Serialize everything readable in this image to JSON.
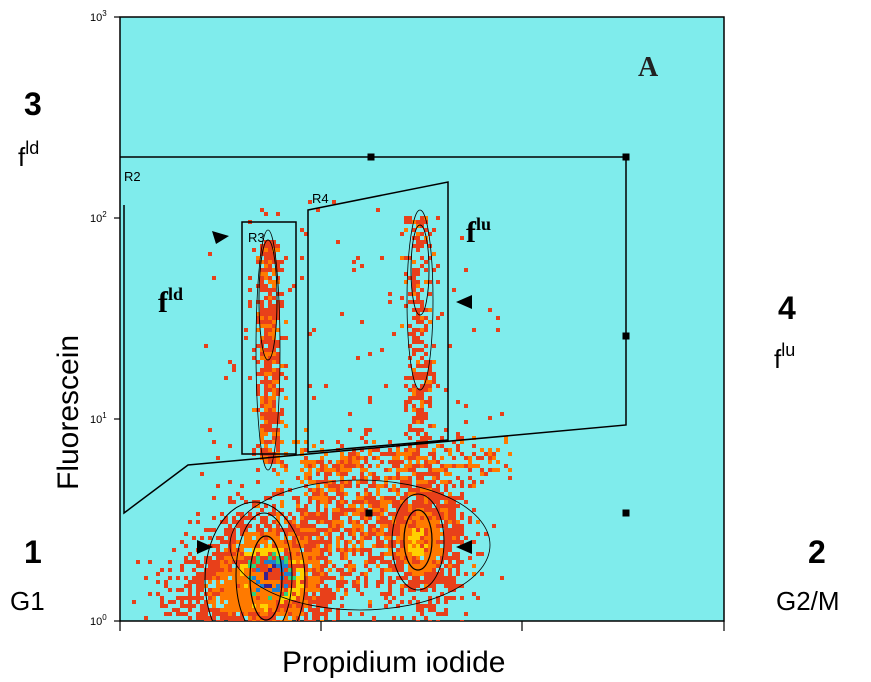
{
  "chart_data": {
    "type": "scatter",
    "subtype": "flow-cytometry-density-plot",
    "panel_letter": "A",
    "xlabel": "Propidium iodide",
    "ylabel": "Fluorescein",
    "y_scale": "log",
    "ylim": [
      1,
      1000
    ],
    "y_ticks": [
      {
        "value": 1,
        "base": "10",
        "exp": "0"
      },
      {
        "value": 10,
        "base": "10",
        "exp": "1"
      },
      {
        "value": 100,
        "base": "10",
        "exp": "2"
      },
      {
        "value": 1000,
        "base": "10",
        "exp": "3"
      }
    ],
    "x_tick_count": 4,
    "background_color": "#7fecec",
    "gates": [
      {
        "id": "R2",
        "label": "R2"
      },
      {
        "id": "R3",
        "label": "R3"
      },
      {
        "id": "R4",
        "label": "R4"
      }
    ],
    "annotations": [
      {
        "base": "f",
        "sup": "ld"
      },
      {
        "base": "f",
        "sup": "lu"
      }
    ],
    "density_colors": [
      "#e8401a",
      "#ff7a00",
      "#ffd000",
      "#2fd07a",
      "#1f7fd0",
      "#3a1f8f"
    ],
    "populations": [
      {
        "name": "G1",
        "x": 0.45,
        "y": 1.6
      },
      {
        "name": "G2/M",
        "x": 0.93,
        "y": 2.6
      },
      {
        "name": "f^ld",
        "x": 0.45,
        "y": 30
      },
      {
        "name": "f^lu",
        "x": 0.93,
        "y": 40
      }
    ]
  },
  "side_labels": {
    "q1_num": "1",
    "q1_text": "G1",
    "q2_num": "2",
    "q2_text": "G2/M",
    "q3_num": "3",
    "q3_base": "f",
    "q3_sup": "ld",
    "q4_num": "4",
    "q4_base": "f",
    "q4_sup": "lu"
  }
}
